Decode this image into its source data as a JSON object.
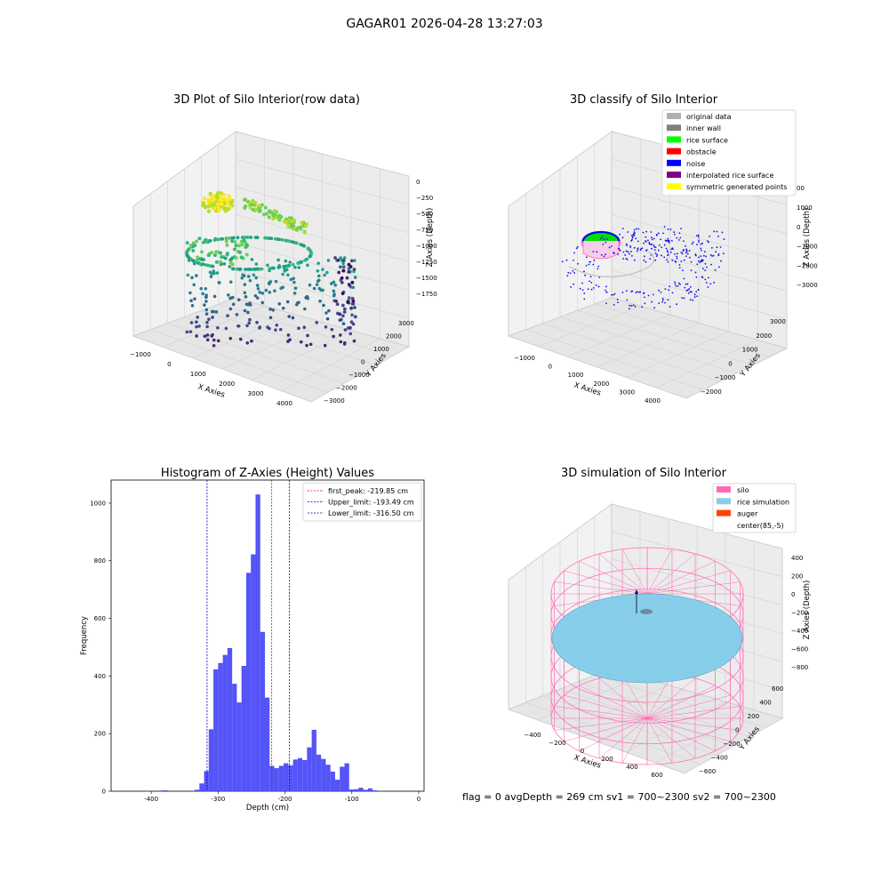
{
  "figure": {
    "suptitle": "GAGAR01 2026-04-28 13:27:03",
    "status_line": "flag = 0     avgDepth = 269 cm  sv1 = 700~2300  sv2 = 700~2300"
  },
  "chart_data": [
    {
      "type": "scatter",
      "subtype": "3d",
      "title": "3D Plot of Silo Interior(row data)",
      "xlabel": "X Axies",
      "ylabel": "Y Axies",
      "zlabel": "Z Axies (Depth)",
      "x_ticks": [
        "−1000",
        "0",
        "1000",
        "2000",
        "3000",
        "4000"
      ],
      "y_ticks": [
        "−3000",
        "−2000",
        "−1000",
        "0",
        "1000",
        "2000",
        "3000"
      ],
      "z_ticks": [
        "0",
        "−250",
        "−500",
        "−750",
        "−1000",
        "−1250",
        "−1500",
        "−1750"
      ],
      "xlim": [
        -1200,
        4300
      ],
      "ylim": [
        -3000,
        3300
      ],
      "zlim": [
        -1900,
        100
      ],
      "colormap": "viridis",
      "grid": true
    },
    {
      "type": "scatter",
      "subtype": "3d",
      "title": "3D classify of Silo Interior",
      "xlabel": "X Axies",
      "ylabel": "Y Axies",
      "zlabel": "Z Axies (Depth)",
      "x_ticks": [
        "−1000",
        "0",
        "1000",
        "2000",
        "3000",
        "4000"
      ],
      "y_ticks": [
        "−2000",
        "−1000",
        "0",
        "1000",
        "2000",
        "3000"
      ],
      "z_ticks": [
        "1000",
        "0",
        "−1000",
        "−2000",
        "−3000"
      ],
      "z_ticks_top_partial": "00",
      "legend": {
        "placement": "top-right",
        "entries": [
          {
            "label": "original data",
            "color": "#b0b0b0"
          },
          {
            "label": "inner wall",
            "color": "#808080"
          },
          {
            "label": "rice surface",
            "color": "#00ff00"
          },
          {
            "label": "obstacle",
            "color": "#ff0000"
          },
          {
            "label": "noise",
            "color": "#0000ff"
          },
          {
            "label": "interpolated rice surface",
            "color": "#800080"
          },
          {
            "label": "symmetric generated points",
            "color": "#ffff00"
          }
        ]
      },
      "grid": true
    },
    {
      "type": "bar",
      "subtype": "histogram",
      "title": "Histogram of Z-Axies (Height) Values",
      "xlabel": "Depth (cm)",
      "ylabel": "Frequency",
      "xlim": [
        -460,
        8
      ],
      "ylim": [
        0,
        1080
      ],
      "x_ticks": [
        -400,
        -300,
        -200,
        -100,
        0
      ],
      "y_ticks": [
        0,
        200,
        400,
        600,
        800,
        1000
      ],
      "bar_color": "#4b4bf8",
      "bins": [
        {
          "x0": -385,
          "x1": -375,
          "count": 3
        },
        {
          "x0": -335,
          "x1": -328,
          "count": 5
        },
        {
          "x0": -328,
          "x1": -321,
          "count": 27
        },
        {
          "x0": -321,
          "x1": -314,
          "count": 70
        },
        {
          "x0": -314,
          "x1": -307,
          "count": 215
        },
        {
          "x0": -307,
          "x1": -300,
          "count": 423
        },
        {
          "x0": -300,
          "x1": -293,
          "count": 445
        },
        {
          "x0": -293,
          "x1": -286,
          "count": 473
        },
        {
          "x0": -286,
          "x1": -279,
          "count": 497
        },
        {
          "x0": -279,
          "x1": -272,
          "count": 373
        },
        {
          "x0": -272,
          "x1": -265,
          "count": 308
        },
        {
          "x0": -265,
          "x1": -258,
          "count": 435
        },
        {
          "x0": -258,
          "x1": -251,
          "count": 758
        },
        {
          "x0": -251,
          "x1": -244,
          "count": 822
        },
        {
          "x0": -244,
          "x1": -237,
          "count": 1030
        },
        {
          "x0": -237,
          "x1": -230,
          "count": 553
        },
        {
          "x0": -230,
          "x1": -223,
          "count": 325
        },
        {
          "x0": -223,
          "x1": -216,
          "count": 88
        },
        {
          "x0": -216,
          "x1": -209,
          "count": 80
        },
        {
          "x0": -209,
          "x1": -202,
          "count": 88
        },
        {
          "x0": -202,
          "x1": -195,
          "count": 97
        },
        {
          "x0": -195,
          "x1": -188,
          "count": 90
        },
        {
          "x0": -188,
          "x1": -181,
          "count": 110
        },
        {
          "x0": -181,
          "x1": -174,
          "count": 115
        },
        {
          "x0": -174,
          "x1": -167,
          "count": 108
        },
        {
          "x0": -167,
          "x1": -160,
          "count": 152
        },
        {
          "x0": -160,
          "x1": -153,
          "count": 213
        },
        {
          "x0": -153,
          "x1": -146,
          "count": 127
        },
        {
          "x0": -146,
          "x1": -139,
          "count": 112
        },
        {
          "x0": -139,
          "x1": -132,
          "count": 92
        },
        {
          "x0": -132,
          "x1": -125,
          "count": 68
        },
        {
          "x0": -125,
          "x1": -118,
          "count": 40
        },
        {
          "x0": -118,
          "x1": -111,
          "count": 85
        },
        {
          "x0": -111,
          "x1": -104,
          "count": 97
        },
        {
          "x0": -104,
          "x1": -97,
          "count": 6
        },
        {
          "x0": -97,
          "x1": -90,
          "count": 7
        },
        {
          "x0": -90,
          "x1": -83,
          "count": 12
        },
        {
          "x0": -83,
          "x1": -76,
          "count": 5
        },
        {
          "x0": -76,
          "x1": -69,
          "count": 10
        },
        {
          "x0": -69,
          "x1": -62,
          "count": 3
        }
      ],
      "vlines": [
        {
          "label": "first_peak: -219.85 cm",
          "value": -219.85,
          "color": "#ff0000"
        },
        {
          "label": "Upper_limit: -193.49 cm",
          "value": -193.49,
          "color": "#0000cc"
        },
        {
          "label": "Lower_limit: -316.50 cm",
          "value": -316.5,
          "color": "#0000cc"
        }
      ],
      "legend_placement": "top-right"
    },
    {
      "type": "scatter",
      "subtype": "3d-surface",
      "title": "3D simulation of Silo Interior",
      "xlabel": "X Axies",
      "ylabel": "Y Axies",
      "zlabel": "Z Axies (Depth)",
      "x_ticks": [
        "−400",
        "−200",
        "0",
        "200",
        "400",
        "600"
      ],
      "y_ticks": [
        "−600",
        "−400",
        "−200",
        "0",
        "200",
        "400",
        "600"
      ],
      "z_ticks": [
        "400",
        "200",
        "0",
        "−200",
        "−400",
        "−600",
        "−800"
      ],
      "legend": {
        "placement": "top-right",
        "entries": [
          {
            "label": "silo",
            "color": "#ff69b4"
          },
          {
            "label": "rice simulation",
            "color": "#87ceeb"
          },
          {
            "label": "auger",
            "color": "#ff4500"
          },
          {
            "label": "center(85,-5)",
            "color": "#ffffff"
          }
        ]
      },
      "grid": true
    }
  ]
}
